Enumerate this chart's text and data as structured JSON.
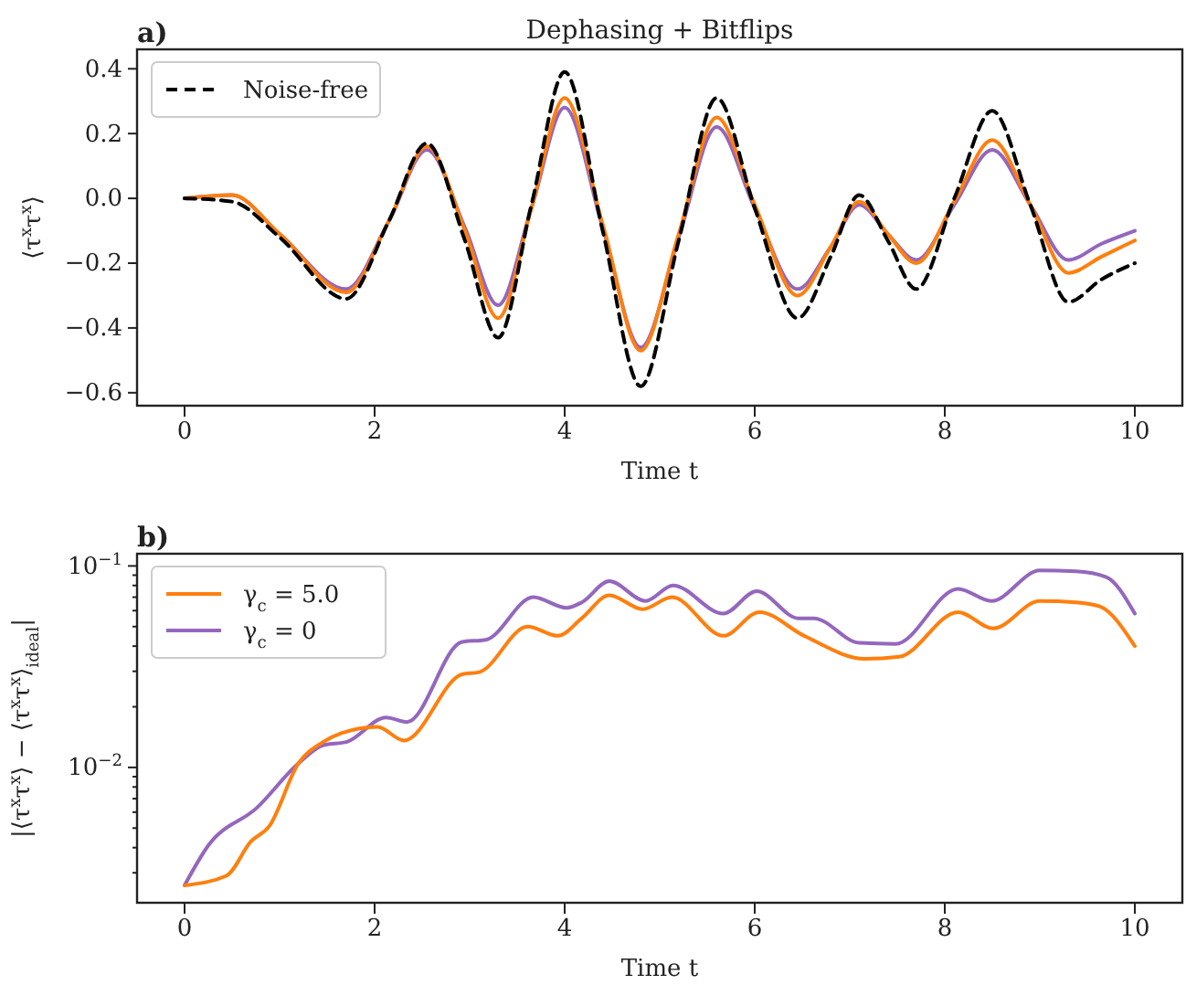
{
  "chart_data": [
    {
      "type": "line",
      "title": "Dephasing + Bitflips",
      "xlabel": "Time t",
      "ylabel": "⟨τ$^{x}$τ$^{x}$⟩",
      "annotations": [
        "a)"
      ],
      "legend": "top left",
      "grid": false,
      "xlim": [
        -0.5,
        10.5
      ],
      "xticks": [
        0,
        2,
        4,
        6,
        8,
        10
      ],
      "ylim": [
        -0.64,
        0.46
      ],
      "yticks": [
        {
          "value": -0.6,
          "label": "−0.6"
        },
        {
          "value": -0.4,
          "label": "−0.4"
        },
        {
          "value": -0.2,
          "label": "−0.2"
        },
        {
          "value": 0,
          "label": "0.0"
        },
        {
          "value": 0.2,
          "label": "0.2"
        },
        {
          "value": 0.4,
          "label": "0.4"
        }
      ],
      "x": [
        0,
        0.5,
        1.0,
        1.7,
        2.15,
        2.55,
        2.95,
        3.3,
        3.65,
        4.0,
        4.4,
        4.8,
        5.2,
        5.6,
        6.0,
        6.45,
        6.8,
        7.1,
        7.4,
        7.7,
        8.1,
        8.5,
        8.9,
        9.3,
        9.65,
        10
      ],
      "series": [
        {
          "name": "Noise-free",
          "color": "#000000",
          "line_style": "dashed",
          "values": [
            0,
            -0.01,
            -0.12,
            -0.31,
            -0.07,
            0.17,
            -0.13,
            -0.43,
            -0.02,
            0.39,
            -0.1,
            -0.58,
            -0.13,
            0.31,
            -0.03,
            -0.37,
            -0.18,
            0.01,
            -0.13,
            -0.28,
            0.0,
            0.27,
            -0.02,
            -0.32,
            -0.25,
            -0.2
          ]
        },
        {
          "color": "#ff7f0e",
          "values": [
            0,
            0.01,
            -0.11,
            -0.29,
            -0.07,
            0.16,
            -0.1,
            -0.37,
            -0.03,
            0.31,
            -0.08,
            -0.47,
            -0.11,
            0.25,
            -0.02,
            -0.3,
            -0.15,
            -0.01,
            -0.11,
            -0.2,
            -0.01,
            0.18,
            -0.02,
            -0.23,
            -0.18,
            -0.13
          ]
        },
        {
          "color": "#9467bd",
          "values": [
            0,
            0.01,
            -0.11,
            -0.28,
            -0.07,
            0.15,
            -0.09,
            -0.33,
            -0.03,
            0.28,
            -0.09,
            -0.46,
            -0.12,
            0.22,
            -0.03,
            -0.28,
            -0.15,
            -0.02,
            -0.11,
            -0.19,
            -0.02,
            0.15,
            -0.02,
            -0.19,
            -0.14,
            -0.1
          ]
        }
      ]
    },
    {
      "type": "line",
      "xlabel": "Time t",
      "ylabel": "|⟨τ$^{x}$τ$^{x}$⟩ − ⟨τ$^{x}$τ$^{x}$⟩$_{ideal}$|",
      "annotations": [
        "b)"
      ],
      "legend": "top left",
      "grid": false,
      "log": "y",
      "xlim": [
        -0.5,
        10.5
      ],
      "xticks": [
        0,
        2,
        4,
        6,
        8,
        10
      ],
      "ylim": [
        0.00213,
        0.115
      ],
      "yticks": [
        {
          "value": 0.003,
          "label": null
        },
        {
          "value": 0.004,
          "label": null
        },
        {
          "value": 0.005,
          "label": null
        },
        {
          "value": 0.006,
          "label": null
        },
        {
          "value": 0.007,
          "label": null
        },
        {
          "value": 0.008,
          "label": null
        },
        {
          "value": 0.009,
          "label": null
        },
        {
          "value": 0.01,
          "label": "10$^{−2}$"
        },
        {
          "value": 0.02,
          "label": null
        },
        {
          "value": 0.03,
          "label": null
        },
        {
          "value": 0.04,
          "label": null
        },
        {
          "value": 0.05,
          "label": null
        },
        {
          "value": 0.06,
          "label": null
        },
        {
          "value": 0.07,
          "label": null
        },
        {
          "value": 0.08,
          "label": null
        },
        {
          "value": 0.09,
          "label": null
        },
        {
          "value": 0.1,
          "label": "10$^{−1}$"
        }
      ],
      "series": [
        {
          "name": "γ$_{c}$ = 5.0",
          "color": "#ff7f0e",
          "x": [
            0,
            0.44,
            0.7,
            0.89,
            1.2,
            1.46,
            1.65,
            2.03,
            2.31,
            2.92,
            3.1,
            3.61,
            3.93,
            4.18,
            4.47,
            4.82,
            5.13,
            5.67,
            6.05,
            6.52,
            7.16,
            7.52,
            8.14,
            8.51,
            9.0,
            9.38,
            9.63,
            10
          ],
          "values": [
            0.0026,
            0.0029,
            0.0043,
            0.0051,
            0.0105,
            0.0134,
            0.0148,
            0.0159,
            0.0136,
            0.029,
            0.0297,
            0.05,
            0.045,
            0.055,
            0.0716,
            0.061,
            0.07,
            0.045,
            0.059,
            0.045,
            0.0346,
            0.0354,
            0.059,
            0.049,
            0.067,
            0.066,
            0.063,
            0.04
          ]
        },
        {
          "name": "γ$_{c}$ = 0",
          "color": "#9467bd",
          "x": [
            0,
            0.25,
            0.76,
            1.2,
            1.46,
            1.71,
            2.12,
            2.34,
            2.92,
            3.17,
            3.67,
            4.02,
            4.18,
            4.47,
            4.85,
            5.14,
            5.67,
            6.02,
            6.46,
            6.62,
            7.1,
            7.48,
            8.14,
            8.49,
            9.0,
            9.38,
            9.7,
            10
          ],
          "values": [
            0.0026,
            0.0041,
            0.0063,
            0.0105,
            0.0129,
            0.0134,
            0.0177,
            0.0168,
            0.042,
            0.043,
            0.07,
            0.062,
            0.066,
            0.084,
            0.067,
            0.08,
            0.058,
            0.075,
            0.055,
            0.055,
            0.0415,
            0.041,
            0.077,
            0.067,
            0.095,
            0.094,
            0.088,
            0.058
          ]
        }
      ]
    }
  ]
}
